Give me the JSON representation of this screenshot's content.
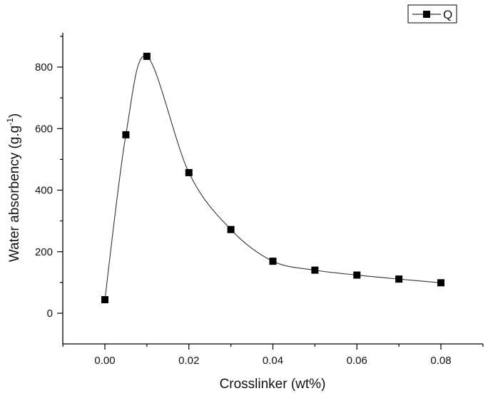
{
  "chart_data": {
    "type": "line",
    "xlabel": "Crosslinker (wt%)",
    "ylabel": "Water absorbency (g.g",
    "ylabel_superscript": "-1",
    "ylabel_suffix": ")",
    "xlim": [
      -0.01,
      0.09
    ],
    "ylim": [
      -100,
      900
    ],
    "x_ticks": [
      0.0,
      0.02,
      0.04,
      0.06,
      0.08
    ],
    "x_tick_labels": [
      "0.00",
      "0.02",
      "0.04",
      "0.06",
      "0.08"
    ],
    "y_ticks": [
      0,
      200,
      400,
      600,
      800
    ],
    "y_tick_labels": [
      "0",
      "200",
      "400",
      "600",
      "800"
    ],
    "grid": false,
    "legend_position": "top-right",
    "series": [
      {
        "name": "Q",
        "marker": "square",
        "color": "#000000",
        "x": [
          0.0,
          0.005,
          0.01,
          0.02,
          0.03,
          0.04,
          0.05,
          0.06,
          0.07,
          0.08
        ],
        "y": [
          44,
          580,
          835,
          457,
          272,
          169,
          140,
          124,
          111,
          99
        ]
      }
    ]
  }
}
